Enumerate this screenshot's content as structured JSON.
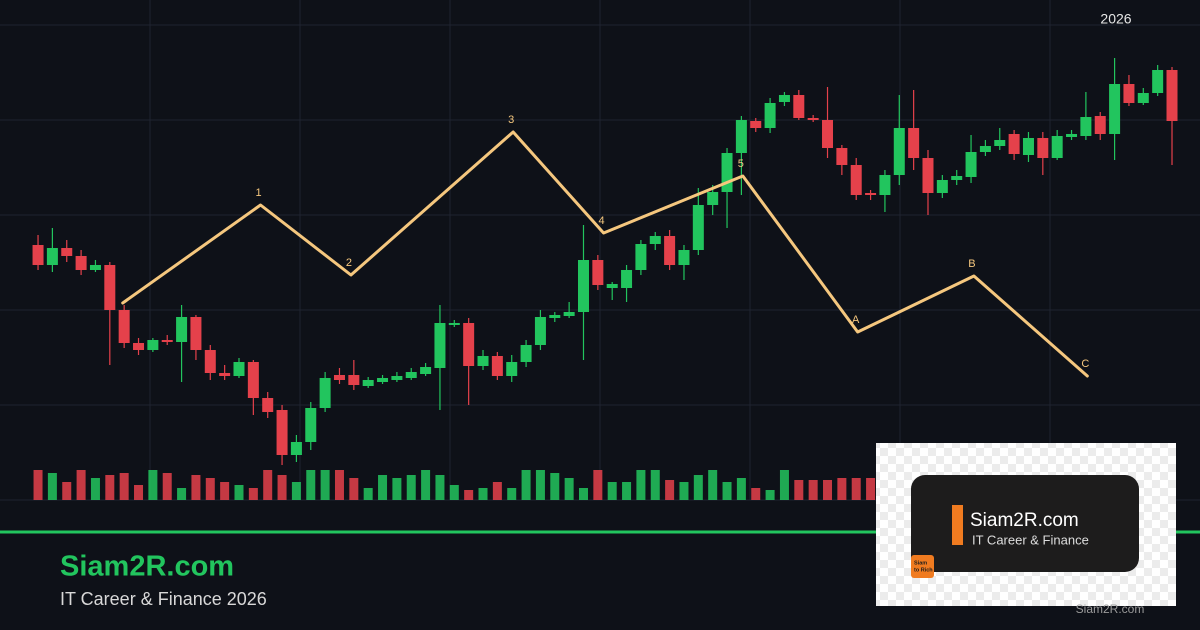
{
  "chart_data": {
    "type": "candlestick",
    "title": "2026",
    "xlim": [
      -2.65,
      80.95
    ],
    "ylim": [
      0,
      500
    ],
    "y2lim": [
      0,
      500
    ],
    "grid": true,
    "up_color": "#22c55e",
    "down_color": "#e5414b",
    "open": [
      255,
      235,
      252,
      244,
      230,
      235,
      190,
      157,
      150,
      160,
      158,
      183,
      150,
      127,
      124,
      138,
      102,
      90,
      45,
      58,
      92,
      125,
      125,
      114,
      118,
      120,
      122,
      126,
      132,
      175,
      177,
      134,
      144,
      124,
      138,
      155,
      182,
      184,
      188,
      240,
      212,
      212,
      230,
      256,
      264,
      235,
      250,
      295,
      308,
      347,
      379,
      372,
      398,
      405,
      382,
      380,
      352,
      335,
      307,
      305,
      325,
      372,
      342,
      307,
      320,
      323,
      348,
      354,
      366,
      345,
      362,
      342,
      363,
      364,
      384,
      366,
      416,
      397,
      407,
      430
    ],
    "high": [
      265,
      272,
      260,
      250,
      240,
      238,
      195,
      162,
      162,
      165,
      195,
      185,
      155,
      135,
      142,
      140,
      108,
      95,
      65,
      98,
      128,
      132,
      140,
      123,
      125,
      128,
      132,
      137,
      195,
      180,
      182,
      150,
      148,
      145,
      160,
      190,
      188,
      198,
      275,
      245,
      218,
      235,
      260,
      268,
      270,
      255,
      312,
      315,
      352,
      384,
      382,
      402,
      408,
      410,
      385,
      413,
      355,
      342,
      310,
      330,
      405,
      410,
      350,
      325,
      330,
      365,
      360,
      372,
      370,
      368,
      368,
      370,
      370,
      408,
      388,
      442,
      425,
      412,
      435,
      433
    ],
    "low": [
      230,
      228,
      238,
      225,
      228,
      135,
      152,
      145,
      148,
      155,
      118,
      140,
      120,
      120,
      122,
      85,
      82,
      35,
      38,
      50,
      88,
      116,
      110,
      112,
      116,
      118,
      120,
      124,
      90,
      173,
      95,
      130,
      120,
      118,
      133,
      150,
      178,
      182,
      140,
      210,
      200,
      198,
      225,
      250,
      230,
      220,
      245,
      285,
      272,
      305,
      368,
      367,
      394,
      380,
      378,
      342,
      325,
      300,
      300,
      288,
      315,
      330,
      285,
      302,
      315,
      317,
      344,
      350,
      340,
      338,
      325,
      340,
      360,
      360,
      360,
      340,
      394,
      395,
      404,
      335
    ],
    "close": [
      235,
      252,
      244,
      230,
      235,
      190,
      157,
      150,
      160,
      158,
      183,
      150,
      127,
      124,
      138,
      102,
      88,
      45,
      58,
      92,
      122,
      120,
      115,
      120,
      122,
      124,
      128,
      133,
      177,
      177,
      134,
      144,
      124,
      138,
      155,
      183,
      185,
      188,
      240,
      215,
      216,
      230,
      256,
      264,
      235,
      250,
      295,
      308,
      347,
      380,
      372,
      397,
      405,
      382,
      380,
      352,
      335,
      305,
      305,
      325,
      372,
      342,
      307,
      320,
      324,
      348,
      354,
      360,
      346,
      362,
      342,
      364,
      366,
      383,
      366,
      416,
      397,
      407,
      430,
      379
    ],
    "volume": [
      30,
      27,
      18,
      30,
      22,
      25,
      27,
      15,
      30,
      27,
      12,
      25,
      22,
      18,
      15,
      12,
      30,
      25,
      18,
      30,
      30,
      30,
      22,
      12,
      25,
      22,
      25,
      30,
      25,
      15,
      10,
      12,
      18,
      12,
      30,
      30,
      27,
      22,
      12,
      30,
      18,
      18,
      30,
      30,
      20,
      18,
      25,
      30,
      18,
      22,
      12,
      10,
      30,
      20,
      20,
      20,
      22,
      22,
      22,
      null,
      null,
      null,
      null,
      null,
      null,
      null,
      null,
      null,
      null,
      null,
      null,
      null,
      null,
      null,
      null,
      null,
      null,
      null,
      null,
      null
    ],
    "wave": {
      "color": "#f5c77e",
      "x": [
        5.9,
        15.5,
        21.8,
        33.1,
        39.4,
        49.1,
        57.1,
        65.2,
        73.1
      ],
      "values": [
        197,
        295,
        225,
        368,
        267,
        324,
        168,
        224,
        124
      ],
      "labels": [
        null,
        "1",
        "2",
        "3",
        "4",
        "5",
        "A",
        "B",
        "C"
      ]
    }
  },
  "brand": {
    "title": "Siam2R.com",
    "subtitle": "IT Career & Finance 2026"
  },
  "logo": {
    "title": "Siam2R.com",
    "subtitle": "IT Career & Finance",
    "badge": [
      "Siam",
      "to Rich"
    ],
    "watermark": "Siam2R.com"
  }
}
